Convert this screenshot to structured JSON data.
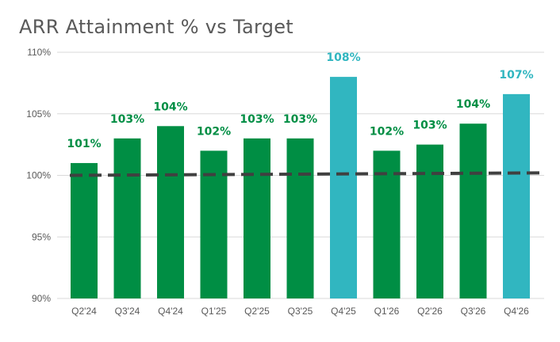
{
  "chart_data": {
    "type": "bar",
    "title": "ARR Attainment % vs Target",
    "categories": [
      "Q2'24",
      "Q3'24",
      "Q4'24",
      "Q1'25",
      "Q2'25",
      "Q3'25",
      "Q4'25",
      "Q1'26",
      "Q2'26",
      "Q3'26",
      "Q4'26"
    ],
    "values": [
      101,
      103,
      104,
      102,
      103,
      103,
      108,
      102,
      102.5,
      104.2,
      106.6
    ],
    "data_labels": [
      "101%",
      "103%",
      "104%",
      "102%",
      "103%",
      "103%",
      "108%",
      "102%",
      "103%",
      "104%",
      "107%"
    ],
    "highlight": [
      false,
      false,
      false,
      false,
      false,
      false,
      true,
      false,
      false,
      false,
      true
    ],
    "ylim": [
      90,
      110
    ],
    "yticks": [
      90,
      95,
      100,
      105,
      110
    ],
    "ytick_labels": [
      "90%",
      "95%",
      "100%",
      "105%",
      "110%"
    ],
    "target_line": {
      "start": 100,
      "end": 100.2,
      "style": "dashed"
    },
    "grid": true,
    "legend": "none",
    "colors": {
      "bar": "#008E44",
      "highlight_bar": "#31B6C0",
      "label": "#008E44",
      "highlight_label": "#31B6C0",
      "target": "#404040",
      "grid": "#D9D9D9",
      "title": "#595959"
    }
  }
}
